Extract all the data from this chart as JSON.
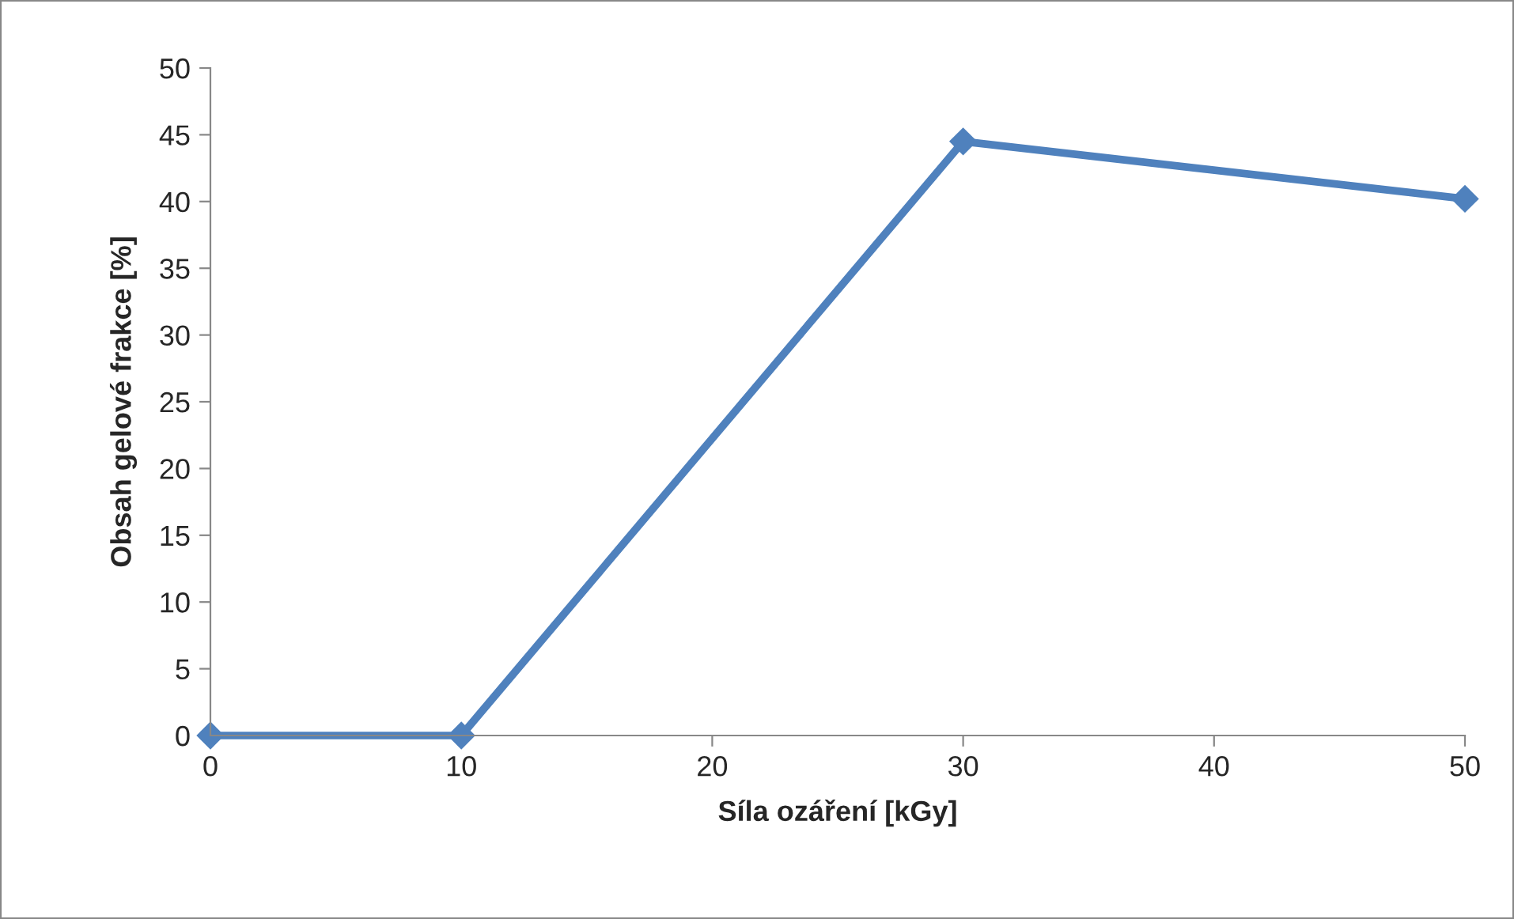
{
  "chart_data": {
    "type": "line",
    "xlabel": "Síla ozáření [kGy]",
    "ylabel": "Obsah gelové frakce [%]",
    "x": [
      0,
      10,
      30,
      50
    ],
    "series": [
      {
        "color": "#4f81bd",
        "values": [
          0,
          0,
          44.5,
          40.2
        ]
      }
    ],
    "xlim": [
      0,
      50
    ],
    "xticks": [
      0,
      10,
      20,
      30,
      40,
      50
    ],
    "ylim": [
      0,
      50
    ],
    "yticks": [
      0,
      5,
      10,
      15,
      20,
      25,
      30,
      35,
      40,
      45,
      50
    ],
    "marker": "diamond",
    "line_style": "solid",
    "grid": false,
    "legend": false
  }
}
